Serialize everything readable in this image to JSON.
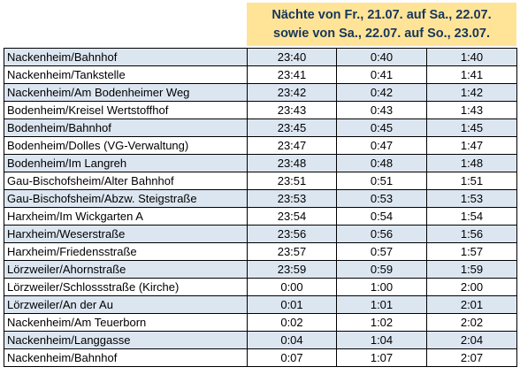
{
  "header": {
    "line1": "Nächte von Fr., 21.07. auf Sa., 22.07.",
    "line2": "sowie von Sa., 22.07. auf So., 23.07."
  },
  "colors": {
    "header_bg": "#ffe497",
    "header_text": "#17365d",
    "row_alt": "#dce6f1"
  },
  "rows": [
    {
      "stop": "Nackenheim/Bahnhof",
      "t1": "23:40",
      "t2": "0:40",
      "t3": "1:40"
    },
    {
      "stop": "Nackenheim/Tankstelle",
      "t1": "23:41",
      "t2": "0:41",
      "t3": "1:41"
    },
    {
      "stop": "Nackenheim/Am Bodenheimer Weg",
      "t1": "23:42",
      "t2": "0:42",
      "t3": "1:42"
    },
    {
      "stop": "Bodenheim/Kreisel Wertstoffhof",
      "t1": "23:43",
      "t2": "0:43",
      "t3": "1:43"
    },
    {
      "stop": "Bodenheim/Bahnhof",
      "t1": "23:45",
      "t2": "0:45",
      "t3": "1:45"
    },
    {
      "stop": "Bodenheim/Dolles (VG-Verwaltung)",
      "t1": "23:47",
      "t2": "0:47",
      "t3": "1:47"
    },
    {
      "stop": "Bodenheim/Im Langreh",
      "t1": "23:48",
      "t2": "0:48",
      "t3": "1:48"
    },
    {
      "stop": "Gau-Bischofsheim/Alter Bahnhof",
      "t1": "23:51",
      "t2": "0:51",
      "t3": "1:51"
    },
    {
      "stop": "Gau-Bischofsheim/Abzw. Steigstraße",
      "t1": "23:53",
      "t2": "0:53",
      "t3": "1:53"
    },
    {
      "stop": "Harxheim/Im Wickgarten A",
      "t1": "23:54",
      "t2": "0:54",
      "t3": "1:54"
    },
    {
      "stop": "Harxheim/Weserstraße",
      "t1": "23:56",
      "t2": "0:56",
      "t3": "1:56"
    },
    {
      "stop": "Harxheim/Friedensstraße",
      "t1": "23:57",
      "t2": "0:57",
      "t3": "1:57"
    },
    {
      "stop": "Lörzweiler/Ahornstraße",
      "t1": "23:59",
      "t2": "0:59",
      "t3": "1:59"
    },
    {
      "stop": "Lörzweiler/Schlossstraße (Kirche)",
      "t1": "0:00",
      "t2": "1:00",
      "t3": "2:00"
    },
    {
      "stop": "Lörzweiler/An der Au",
      "t1": "0:01",
      "t2": "1:01",
      "t3": "2:01"
    },
    {
      "stop": "Nackenheim/Am Teuerborn",
      "t1": "0:02",
      "t2": "1:02",
      "t3": "2:02"
    },
    {
      "stop": "Nackenheim/Langgasse",
      "t1": "0:04",
      "t2": "1:04",
      "t3": "2:04"
    },
    {
      "stop": "Nackenheim/Bahnhof",
      "t1": "0:07",
      "t2": "1:07",
      "t3": "2:07"
    }
  ]
}
